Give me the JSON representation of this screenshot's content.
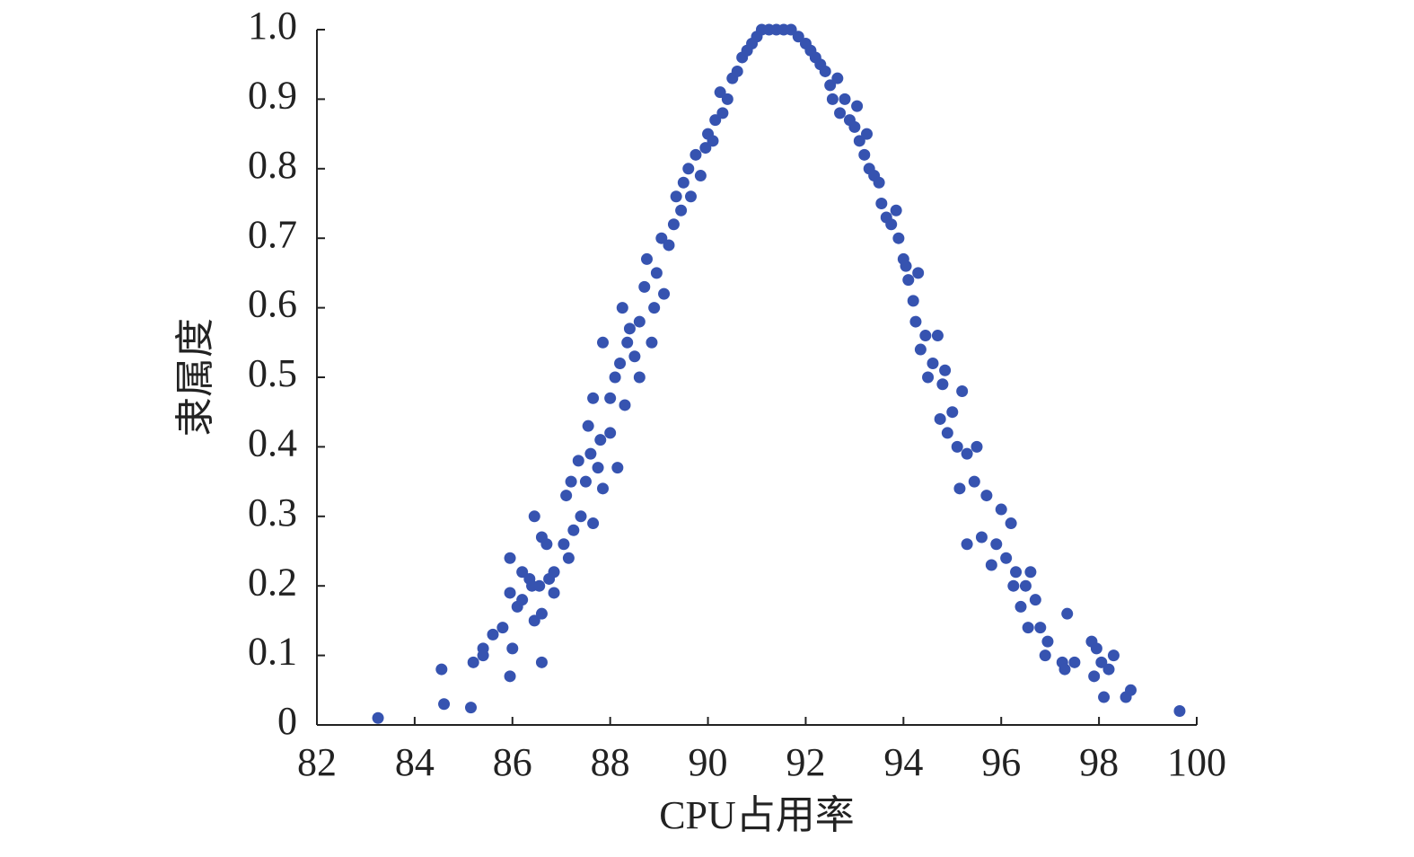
{
  "chart_data": {
    "type": "scatter",
    "x_label": "CPU占用率",
    "y_label": "隶属度",
    "color": "#3653b0",
    "xlim": [
      82,
      100
    ],
    "xticks": [
      82,
      84,
      86,
      88,
      90,
      92,
      94,
      96,
      98,
      100
    ],
    "ylim": [
      0,
      1
    ],
    "yticks": [
      0,
      0.1,
      0.2,
      0.3,
      0.4,
      0.5,
      0.6,
      0.7,
      0.8,
      0.9,
      {
        "value": 1,
        "label": "1.0"
      }
    ],
    "series": [
      {
        "name": "隶属度",
        "color": "#3653b0",
        "x": [
          83.25,
          84.55,
          84.6,
          85.15,
          85.2,
          85.4,
          85.4,
          85.6,
          85.8,
          85.95,
          85.95,
          85.95,
          86.0,
          86.1,
          86.2,
          86.2,
          86.35,
          86.4,
          86.45,
          86.45,
          86.55,
          86.6,
          86.6,
          86.6,
          86.7,
          86.75,
          86.85,
          86.85,
          87.05,
          87.1,
          87.15,
          87.2,
          87.25,
          87.35,
          87.4,
          87.5,
          87.55,
          87.6,
          87.65,
          87.65,
          87.75,
          87.8,
          87.85,
          87.85,
          88.0,
          88.0,
          88.1,
          88.15,
          88.2,
          88.25,
          88.3,
          88.35,
          88.4,
          88.5,
          88.6,
          88.6,
          88.7,
          88.75,
          88.85,
          88.9,
          88.95,
          89.05,
          89.1,
          89.2,
          89.3,
          89.35,
          89.45,
          89.5,
          89.6,
          89.65,
          89.75,
          89.85,
          89.95,
          90.0,
          90.1,
          90.15,
          90.25,
          90.3,
          90.4,
          90.5,
          90.6,
          90.7,
          90.8,
          90.9,
          91.0,
          91.1,
          91.25,
          91.4,
          91.55,
          91.7,
          91.85,
          92.0,
          92.1,
          92.2,
          92.3,
          92.4,
          92.5,
          92.55,
          92.65,
          92.7,
          92.8,
          92.9,
          93.0,
          93.05,
          93.1,
          93.2,
          93.25,
          93.3,
          93.4,
          93.5,
          93.55,
          93.65,
          93.75,
          93.85,
          93.9,
          94.0,
          94.05,
          94.1,
          94.2,
          94.25,
          94.3,
          94.35,
          94.45,
          94.5,
          94.6,
          94.7,
          94.75,
          94.8,
          94.85,
          94.9,
          95.0,
          95.1,
          95.15,
          95.2,
          95.3,
          95.3,
          95.45,
          95.5,
          95.6,
          95.7,
          95.8,
          95.9,
          96.0,
          96.1,
          96.2,
          96.25,
          96.3,
          96.4,
          96.5,
          96.55,
          96.6,
          96.7,
          96.8,
          96.9,
          96.95,
          97.25,
          97.3,
          97.35,
          97.5,
          97.85,
          97.9,
          97.95,
          98.05,
          98.1,
          98.2,
          98.3,
          98.55,
          98.65,
          99.65
        ],
        "values": [
          0.01,
          0.08,
          0.03,
          0.025,
          0.09,
          0.11,
          0.1,
          0.13,
          0.14,
          0.19,
          0.24,
          0.07,
          0.11,
          0.17,
          0.18,
          0.22,
          0.21,
          0.2,
          0.3,
          0.15,
          0.2,
          0.09,
          0.16,
          0.27,
          0.26,
          0.21,
          0.19,
          0.22,
          0.26,
          0.33,
          0.24,
          0.35,
          0.28,
          0.38,
          0.3,
          0.35,
          0.43,
          0.39,
          0.29,
          0.47,
          0.37,
          0.41,
          0.55,
          0.34,
          0.47,
          0.42,
          0.5,
          0.37,
          0.52,
          0.6,
          0.46,
          0.55,
          0.57,
          0.53,
          0.5,
          0.58,
          0.63,
          0.67,
          0.55,
          0.6,
          0.65,
          0.7,
          0.62,
          0.69,
          0.72,
          0.76,
          0.74,
          0.78,
          0.8,
          0.76,
          0.82,
          0.79,
          0.83,
          0.85,
          0.84,
          0.87,
          0.91,
          0.88,
          0.9,
          0.93,
          0.94,
          0.96,
          0.97,
          0.98,
          0.99,
          1.0,
          1.0,
          1.0,
          1.0,
          1.0,
          0.99,
          0.98,
          0.97,
          0.96,
          0.95,
          0.94,
          0.92,
          0.9,
          0.93,
          0.88,
          0.9,
          0.87,
          0.86,
          0.89,
          0.84,
          0.82,
          0.85,
          0.8,
          0.79,
          0.78,
          0.75,
          0.73,
          0.72,
          0.74,
          0.7,
          0.67,
          0.66,
          0.64,
          0.61,
          0.58,
          0.65,
          0.54,
          0.56,
          0.5,
          0.52,
          0.56,
          0.44,
          0.49,
          0.51,
          0.42,
          0.45,
          0.4,
          0.34,
          0.48,
          0.26,
          0.39,
          0.35,
          0.4,
          0.27,
          0.33,
          0.23,
          0.26,
          0.31,
          0.24,
          0.29,
          0.2,
          0.22,
          0.17,
          0.2,
          0.14,
          0.22,
          0.18,
          0.14,
          0.1,
          0.12,
          0.09,
          0.08,
          0.16,
          0.09,
          0.12,
          0.07,
          0.11,
          0.09,
          0.04,
          0.08,
          0.1,
          0.04,
          0.05,
          0.02
        ]
      }
    ]
  }
}
